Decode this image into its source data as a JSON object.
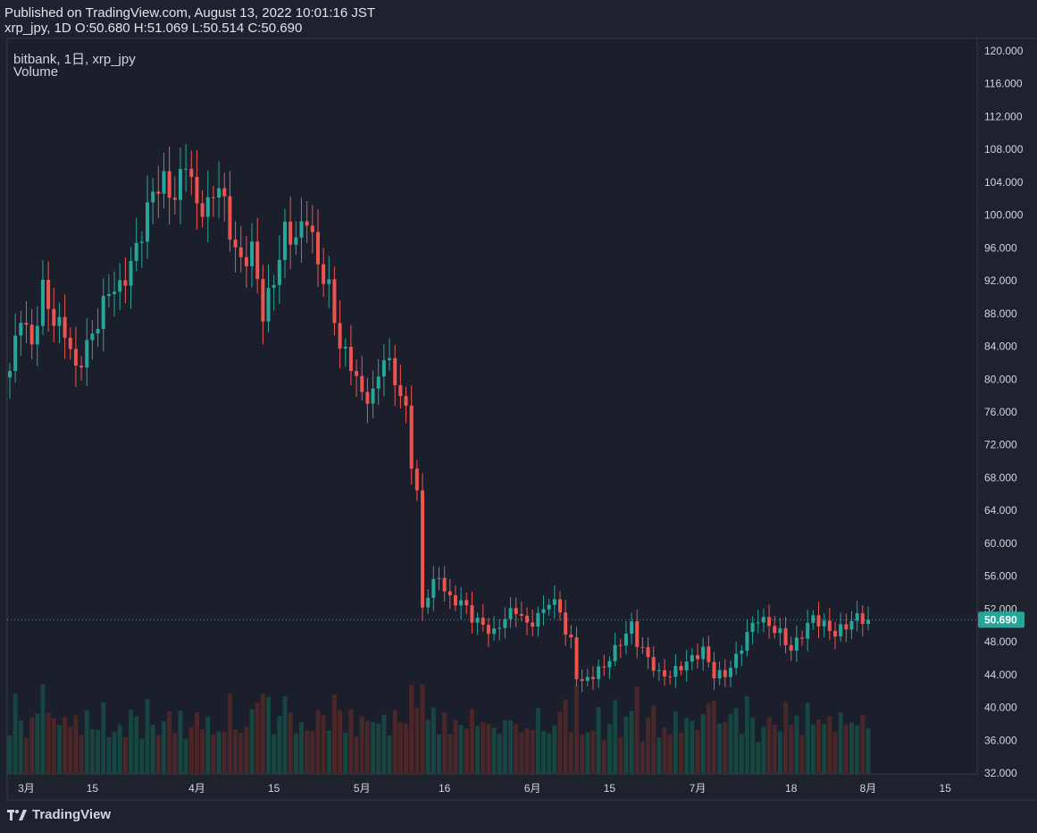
{
  "header": {
    "published": "Published on TradingView.com, August 13, 2022 10:01:16 JST",
    "ohlc": "xrp_jpy, 1D O:50.680 H:51.069 L:50.514 C:50.690"
  },
  "legend": {
    "symbol": "bitbank, 1日, xrp_jpy",
    "volume": "Volume"
  },
  "footer": {
    "brand": "TradingView"
  },
  "colors": {
    "background": "#1e222d",
    "plot_background": "#1b1f2b",
    "up": "#26a69a",
    "down": "#ef5350",
    "up_volume": "#17453f",
    "down_volume": "#4a2629",
    "last_price_badge": "#26a69a"
  },
  "chart_data": {
    "type": "candlestick",
    "price_scale": {
      "ticks": [
        "120.000",
        "116.000",
        "112.000",
        "108.000",
        "104.000",
        "100.000",
        "96.000",
        "92.000",
        "88.000",
        "84.000",
        "80.000",
        "76.000",
        "72.000",
        "68.000",
        "64.000",
        "60.000",
        "56.000",
        "52.000",
        "48.000",
        "44.000",
        "40.000",
        "36.000",
        "32.000"
      ],
      "range": [
        32,
        120
      ]
    },
    "time_scale": {
      "ticks": [
        "3月",
        "15",
        "4月",
        "15",
        "5月",
        "16",
        "6月",
        "15",
        "7月",
        "18",
        "8月",
        "15"
      ],
      "tick_days": [
        3,
        15,
        34,
        48,
        64,
        79,
        95,
        109,
        125,
        142,
        156,
        170
      ]
    },
    "last_price": "50.690",
    "last_price_value": 50.69,
    "anchors": [
      [
        0,
        81
      ],
      [
        2,
        88
      ],
      [
        4,
        84
      ],
      [
        6,
        91
      ],
      [
        8,
        87
      ],
      [
        10,
        86
      ],
      [
        12,
        81
      ],
      [
        14,
        84
      ],
      [
        16,
        87
      ],
      [
        18,
        91
      ],
      [
        20,
        91
      ],
      [
        22,
        94
      ],
      [
        24,
        98
      ],
      [
        26,
        103
      ],
      [
        28,
        104
      ],
      [
        30,
        102
      ],
      [
        32,
        107
      ],
      [
        34,
        101
      ],
      [
        36,
        101
      ],
      [
        38,
        104
      ],
      [
        40,
        98
      ],
      [
        42,
        94
      ],
      [
        44,
        96
      ],
      [
        46,
        88
      ],
      [
        48,
        92
      ],
      [
        50,
        98
      ],
      [
        52,
        97
      ],
      [
        54,
        100
      ],
      [
        56,
        94
      ],
      [
        58,
        91
      ],
      [
        60,
        84
      ],
      [
        62,
        82
      ],
      [
        64,
        78
      ],
      [
        66,
        78
      ],
      [
        68,
        83
      ],
      [
        70,
        80
      ],
      [
        72,
        76
      ],
      [
        73,
        70
      ],
      [
        74,
        66
      ],
      [
        75,
        52
      ],
      [
        76,
        54
      ],
      [
        78,
        56
      ],
      [
        80,
        53
      ],
      [
        82,
        53
      ],
      [
        84,
        51
      ],
      [
        86,
        50
      ],
      [
        88,
        49
      ],
      [
        90,
        51
      ],
      [
        92,
        52
      ],
      [
        94,
        50
      ],
      [
        96,
        51
      ],
      [
        98,
        53
      ],
      [
        100,
        52
      ],
      [
        101,
        49
      ],
      [
        102,
        48
      ],
      [
        103,
        44
      ],
      [
        104,
        43
      ],
      [
        106,
        44
      ],
      [
        108,
        45
      ],
      [
        110,
        47
      ],
      [
        112,
        49
      ],
      [
        113,
        50
      ],
      [
        114,
        48
      ],
      [
        116,
        46
      ],
      [
        118,
        44
      ],
      [
        120,
        44
      ],
      [
        122,
        45
      ],
      [
        124,
        46
      ],
      [
        126,
        47
      ],
      [
        128,
        44
      ],
      [
        130,
        44
      ],
      [
        132,
        46
      ],
      [
        134,
        49
      ],
      [
        136,
        51
      ],
      [
        138,
        50
      ],
      [
        140,
        49
      ],
      [
        142,
        47
      ],
      [
        144,
        49
      ],
      [
        146,
        51
      ],
      [
        148,
        50
      ],
      [
        150,
        49
      ],
      [
        152,
        50
      ],
      [
        154,
        51
      ],
      [
        156,
        50.69
      ]
    ]
  }
}
